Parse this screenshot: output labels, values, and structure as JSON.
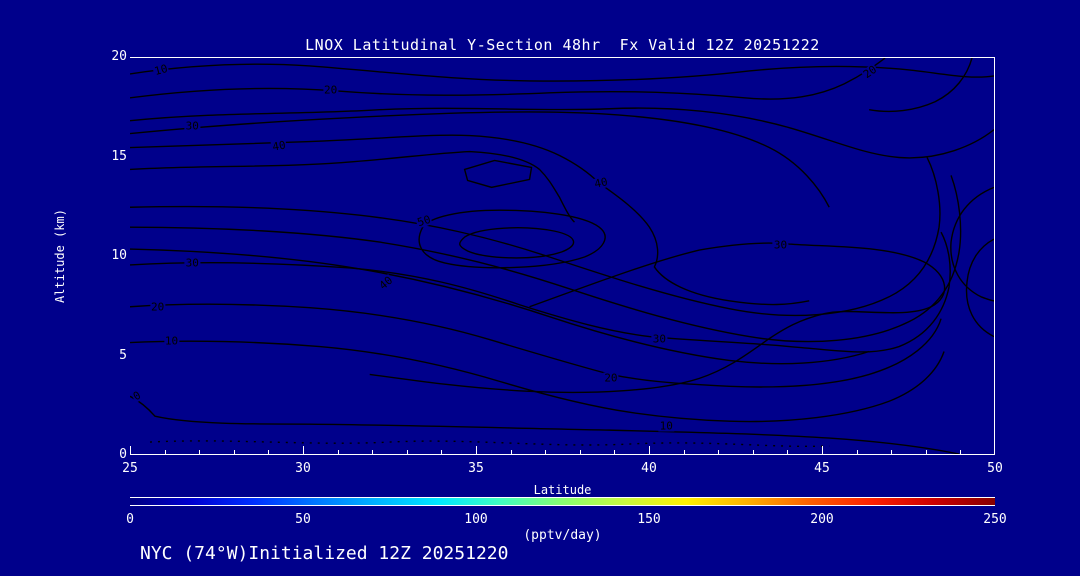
{
  "window": {
    "title": "LNOX Latitudinal Y-Section 48hr  Fx Valid 12Z 20251222",
    "footer": "NYC (74°W)Initialized 12Z 20251220"
  },
  "colors": {
    "background": "#00008B",
    "contour_line": "#000000",
    "frame_and_text": "#FFFFFF"
  },
  "chart_data": {
    "type": "heatmap",
    "subtype": "contour-section",
    "title": "LNOX Latitudinal Y-Section 48hr  Fx Valid 12Z 20251222",
    "xlabel": "Latitude",
    "ylabel": "Altitude (km)",
    "xlim": [
      25,
      50
    ],
    "ylim": [
      0,
      20
    ],
    "x_ticks": [
      25,
      30,
      35,
      40,
      45,
      50
    ],
    "x_minor_step": 1,
    "y_ticks": [
      0,
      5,
      10,
      15,
      20
    ],
    "grid": false,
    "contour_levels": [
      0,
      10,
      20,
      30,
      40,
      50,
      60
    ],
    "contour_labels": [
      {
        "value": "10",
        "lat": 25.9,
        "alt": 19.4,
        "rot": -15
      },
      {
        "value": "20",
        "lat": 30.8,
        "alt": 18.4,
        "rot": 0
      },
      {
        "value": "30",
        "lat": 26.8,
        "alt": 16.6,
        "rot": 0
      },
      {
        "value": "40",
        "lat": 29.3,
        "alt": 15.6,
        "rot": -10
      },
      {
        "value": "20",
        "lat": 46.4,
        "alt": 19.3,
        "rot": -35
      },
      {
        "value": "40",
        "lat": 38.6,
        "alt": 13.7,
        "rot": -12
      },
      {
        "value": "50",
        "lat": 33.5,
        "alt": 11.8,
        "rot": -18
      },
      {
        "value": "30",
        "lat": 43.8,
        "alt": 10.6,
        "rot": 0
      },
      {
        "value": "30",
        "lat": 26.8,
        "alt": 9.7,
        "rot": 0
      },
      {
        "value": "40",
        "lat": 32.4,
        "alt": 8.7,
        "rot": -40
      },
      {
        "value": "20",
        "lat": 25.8,
        "alt": 7.5,
        "rot": 0
      },
      {
        "value": "30",
        "lat": 40.3,
        "alt": 5.9,
        "rot": 0
      },
      {
        "value": "10",
        "lat": 26.2,
        "alt": 5.8,
        "rot": 0
      },
      {
        "value": "20",
        "lat": 38.9,
        "alt": 3.9,
        "rot": 0
      },
      {
        "value": "0",
        "lat": 25.2,
        "alt": 3.0,
        "rot": -30
      },
      {
        "value": "10",
        "lat": 40.5,
        "alt": 1.5,
        "rot": 0
      }
    ],
    "colorbar": {
      "min": 0,
      "max": 250,
      "ticks": [
        0,
        50,
        100,
        150,
        200,
        250
      ],
      "label": "(pptv/day)",
      "colors": [
        "#000080",
        "#0000D0",
        "#0030FF",
        "#0078FF",
        "#00B4FF",
        "#00E8FF",
        "#40FFC0",
        "#88FF70",
        "#C8F840",
        "#FFF000",
        "#FFB000",
        "#FF6000",
        "#FF2000",
        "#CC0000",
        "#860000"
      ]
    }
  }
}
